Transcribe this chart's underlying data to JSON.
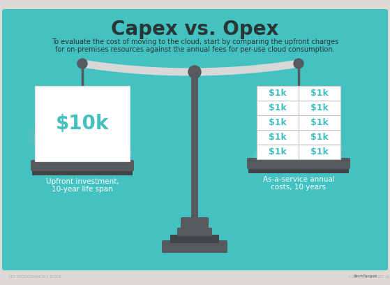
{
  "title": "Capex vs. Opex",
  "subtitle_line1": "To evaluate the cost of moving to the cloud, start by comparing the upfront charges",
  "subtitle_line2": "for on-premises resources against the annual fees for per-use cloud consumption.",
  "bg_color": "#44c1c1",
  "border_color": "#d8d0c8",
  "title_color": "#2a3535",
  "subtitle_color": "#2a3535",
  "left_amount": "$10k",
  "left_label_line1": "Upfront investment,",
  "left_label_line2": "10-year life span",
  "right_label_line1": "As-a-service annual",
  "right_label_line2": "costs, 10 years",
  "cell_value": "$1k",
  "teal_text": "#44bfbf",
  "dark_color": "#484d52",
  "darker_color": "#3a3f44",
  "white_color": "#ffffff",
  "cell_border": "#c8c8c8",
  "beam_color": "#d8d8d8",
  "pole_color": "#555a5f",
  "pole_dark": "#404548",
  "cloud_light": "#70cccc",
  "cloud_lighter": "#88d8d8",
  "footer_bg": "#dedad6",
  "footer_text": "#aaaaaa",
  "num_rows": 5,
  "num_cols": 2,
  "figw": 5.59,
  "figh": 4.08,
  "dpi": 100
}
